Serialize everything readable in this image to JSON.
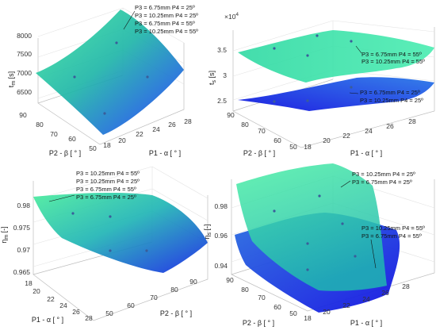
{
  "chart_data": [
    {
      "type": "surface",
      "zlabel": "t_m [s]",
      "xlabel": "P2 - β [ ° ]",
      "ylabel": "P1 - α [ ° ]",
      "z_ticks": [
        "6500",
        "7000",
        "7500",
        "8000"
      ],
      "x_ticks": [
        "90",
        "80",
        "70",
        "60",
        "50"
      ],
      "y_ticks": [
        "18",
        "20",
        "22",
        "24",
        "26",
        "28"
      ],
      "series": [
        {
          "name": "P3 = 6.75mm  P4 = 25º"
        },
        {
          "name": "P3 = 10.25mm  P4 = 25º"
        },
        {
          "name": "P3 = 6.75mm  P4 = 55º"
        },
        {
          "name": "P3 = 10.25mm  P4 = 55º"
        }
      ]
    },
    {
      "type": "surface",
      "zlabel": "t_s [s]",
      "exponent": "×10",
      "exponent_power": "4",
      "xlabel": "P2 - β [ ° ]",
      "ylabel": "P1 - α [ ° ]",
      "z_ticks": [
        "2.5",
        "3",
        "3.5"
      ],
      "x_ticks": [
        "90",
        "80",
        "70",
        "60",
        "50"
      ],
      "y_ticks": [
        "18",
        "20",
        "22",
        "24",
        "26",
        "28"
      ],
      "series": [
        {
          "name": "P3 = 6.75mm  P4 = 55º"
        },
        {
          "name": "P3 = 10.25mm  P4 = 55º"
        },
        {
          "name": "P3 = 6.75mm  P4 = 25º"
        },
        {
          "name": "P3 = 10.25mm  P4 = 25º"
        }
      ]
    },
    {
      "type": "surface",
      "zlabel": "η_m [-]",
      "xlabel": "P1 - α [ ° ]",
      "ylabel": "P2 - β [ ° ]",
      "z_ticks": [
        "0.965",
        "0.97",
        "0.975",
        "0.98"
      ],
      "x_ticks": [
        "18",
        "20",
        "22",
        "24",
        "26",
        "28"
      ],
      "y_ticks": [
        "50",
        "60",
        "70",
        "80",
        "90"
      ],
      "series": [
        {
          "name": "P3 = 10.25mm  P4 = 55º"
        },
        {
          "name": "P3 = 10.25mm  P4 = 25º"
        },
        {
          "name": "P3 = 6.75mm  P4 = 55º"
        },
        {
          "name": "P3 = 6.75mm  P4 = 25º"
        }
      ]
    },
    {
      "type": "surface",
      "zlabel": "η_s [-]",
      "xlabel": "P2 - β [ ° ]",
      "ylabel": "P1 - α [ ° ]",
      "z_ticks": [
        "0.94",
        "0.96",
        "0.98"
      ],
      "x_ticks": [
        "90",
        "80",
        "70",
        "60",
        "50"
      ],
      "y_ticks": [
        "18",
        "20",
        "22",
        "24",
        "26",
        "28"
      ],
      "series": [
        {
          "name": "P3 = 10.25mm  P4 = 25º"
        },
        {
          "name": "P3 = 6.75mm  P4 = 25º"
        },
        {
          "name": "P3 = 10.25mm  P4 = 55º"
        },
        {
          "name": "P3 = 6.75mm  P4 = 55º"
        }
      ]
    }
  ],
  "colors": {
    "surface_green": "#3ddc97",
    "surface_blue": "#1a2be8",
    "surface_mid": "#1f8fd0",
    "marker": "#3a5d9a",
    "grid": "#e3e3e3"
  }
}
